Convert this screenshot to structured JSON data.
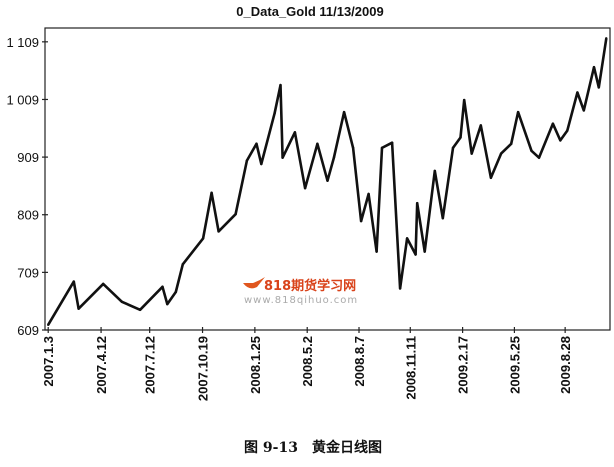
{
  "chart_data": {
    "type": "line",
    "title": "0_Data_Gold 11/13/2009",
    "xlabel": "",
    "ylabel": "",
    "x_type": "date",
    "xlim": [
      "2006-12-28",
      "2009-11-20"
    ],
    "ylim": [
      609,
      1133
    ],
    "grid": false,
    "legend": "none",
    "line_color": "#111111",
    "y_ticks": [
      609,
      709,
      809,
      909,
      1009,
      1109
    ],
    "y_tick_labels": [
      "609",
      "709",
      "809",
      "909",
      "1 009",
      "1 109"
    ],
    "x_ticks": [
      "2007-01-03",
      "2007-04-12",
      "2007-07-12",
      "2007-10-19",
      "2008-01-25",
      "2008-05-02",
      "2008-08-07",
      "2008-11-11",
      "2009-02-17",
      "2009-05-25",
      "2009-08-28"
    ],
    "x_tick_labels": [
      "2007.1.3",
      "2007.4.12",
      "2007.7.12",
      "2007.10.19",
      "2008.1.25",
      "2008.5.2",
      "2008.8.7",
      "2008.11.11",
      "2009.2.17",
      "2009.5.25",
      "2009.8.28"
    ],
    "series": [
      {
        "x": [
          "2007-01-03",
          "2007-02-20",
          "2007-03-01",
          "2007-04-16",
          "2007-05-21",
          "2007-06-24",
          "2007-08-05",
          "2007-08-14",
          "2007-08-30",
          "2007-09-12",
          "2007-10-20",
          "2007-11-05",
          "2007-11-18",
          "2007-12-20",
          "2008-01-10",
          "2008-01-28",
          "2008-02-06",
          "2008-03-02",
          "2008-03-13",
          "2008-03-17",
          "2008-04-09",
          "2008-04-28",
          "2008-05-21",
          "2008-06-09",
          "2008-06-21",
          "2008-07-10",
          "2008-07-27",
          "2008-08-11",
          "2008-08-25",
          "2008-09-09",
          "2008-09-19",
          "2008-10-08",
          "2008-10-23",
          "2008-11-05",
          "2008-11-21",
          "2008-11-24",
          "2008-12-08",
          "2008-12-27",
          "2009-01-11",
          "2009-01-30",
          "2009-02-13",
          "2009-02-20",
          "2009-03-06",
          "2009-03-23",
          "2009-04-11",
          "2009-04-30",
          "2009-05-19",
          "2009-06-01",
          "2009-06-26",
          "2009-07-10",
          "2009-08-05",
          "2009-08-19",
          "2009-09-01",
          "2009-09-20",
          "2009-10-02",
          "2009-10-21",
          "2009-10-30",
          "2009-11-13"
        ],
        "values": [
          618,
          693,
          646,
          689,
          658,
          644,
          684,
          654,
          675,
          723,
          768,
          847,
          780,
          810,
          903,
          932,
          897,
          985,
          1034,
          908,
          952,
          855,
          932,
          868,
          908,
          987,
          925,
          798,
          845,
          745,
          925,
          934,
          681,
          768,
          740,
          829,
          745,
          885,
          803,
          925,
          943,
          1008,
          915,
          964,
          873,
          915,
          932,
          987,
          920,
          908,
          967,
          938,
          955,
          1021,
          990,
          1065,
          1030,
          1115
        ]
      }
    ]
  },
  "watermark": {
    "brand": "818期货学习网",
    "url": "www.818qihuo.com"
  },
  "caption": "图 9-13　黄金日线图"
}
